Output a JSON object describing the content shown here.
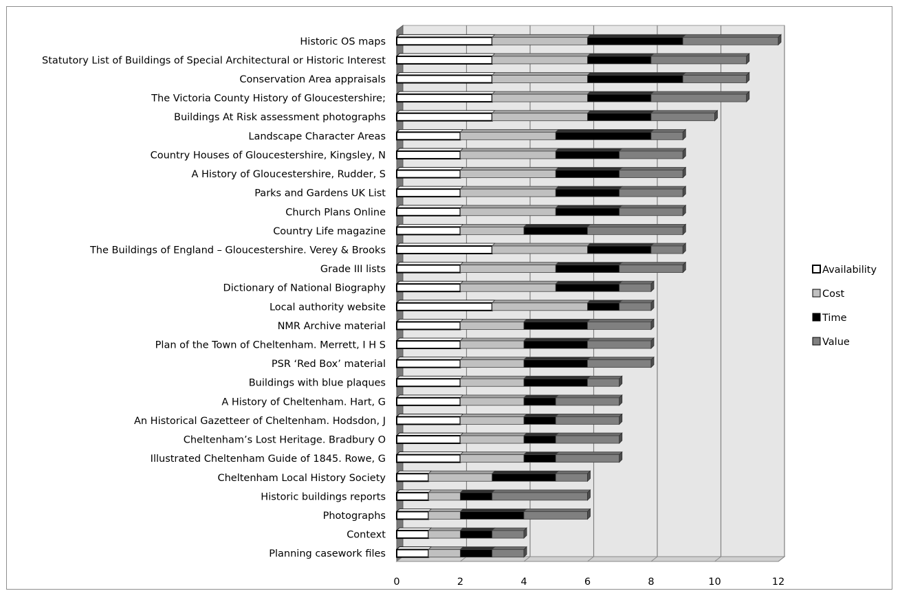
{
  "chart_data": {
    "type": "bar",
    "orientation": "horizontal",
    "stacked": true,
    "style": "3d",
    "title": "",
    "xlabel": "",
    "ylabel": "",
    "xlim": [
      0,
      12
    ],
    "x_ticks": [
      "0",
      "2",
      "4",
      "6",
      "8",
      "10",
      "12"
    ],
    "grid": "vertical",
    "legend_position": "right",
    "categories": [
      "Historic OS maps",
      "Statutory List of Buildings of Special Architectural or Historic Interest",
      "Conservation Area appraisals",
      "The Victoria County History of Gloucestershire;",
      "Buildings At Risk assessment photographs",
      "Landscape Character Areas",
      "Country Houses of Gloucestershire, Kingsley, N",
      "A History of Gloucestershire, Rudder, S",
      "Parks and Gardens UK List",
      "Church Plans Online",
      "Country Life magazine",
      "The Buildings of England – Gloucestershire. Verey & Brooks",
      "Grade III lists",
      "Dictionary of National Biography",
      "Local authority website",
      "NMR Archive material",
      "Plan of the Town of Cheltenham. Merrett, I H S",
      "PSR ‘Red Box’ material",
      "Buildings with blue plaques",
      "A History of Cheltenham. Hart, G",
      "An Historical Gazetteer of Cheltenham. Hodsdon, J",
      "Cheltenham’s Lost Heritage. Bradbury O",
      "Illustrated Cheltenham Guide of 1845. Rowe, G",
      "Cheltenham Local History Society",
      "Historic buildings reports",
      "Photographs",
      "Context",
      "Planning casework files"
    ],
    "series": [
      {
        "name": "Availability",
        "color": "#ffffff",
        "values": [
          3,
          3,
          3,
          3,
          3,
          2,
          2,
          2,
          2,
          2,
          2,
          3,
          2,
          2,
          3,
          2,
          2,
          2,
          2,
          2,
          2,
          2,
          2,
          1,
          1,
          1,
          1,
          1
        ]
      },
      {
        "name": "Cost",
        "color": "#c0c0c0",
        "values": [
          3,
          3,
          3,
          3,
          3,
          3,
          3,
          3,
          3,
          3,
          2,
          3,
          3,
          3,
          3,
          2,
          2,
          2,
          2,
          2,
          2,
          2,
          2,
          2,
          1,
          1,
          1,
          1
        ]
      },
      {
        "name": "Time",
        "color": "#000000",
        "values": [
          3,
          2,
          3,
          2,
          2,
          3,
          2,
          2,
          2,
          2,
          2,
          2,
          2,
          2,
          1,
          2,
          2,
          2,
          2,
          1,
          1,
          1,
          1,
          2,
          1,
          2,
          1,
          1
        ]
      },
      {
        "name": "Value",
        "color": "#808080",
        "values": [
          3,
          3,
          2,
          3,
          2,
          1,
          2,
          2,
          2,
          2,
          3,
          1,
          2,
          1,
          1,
          2,
          2,
          2,
          1,
          2,
          2,
          2,
          2,
          1,
          3,
          2,
          1,
          1
        ]
      }
    ]
  }
}
